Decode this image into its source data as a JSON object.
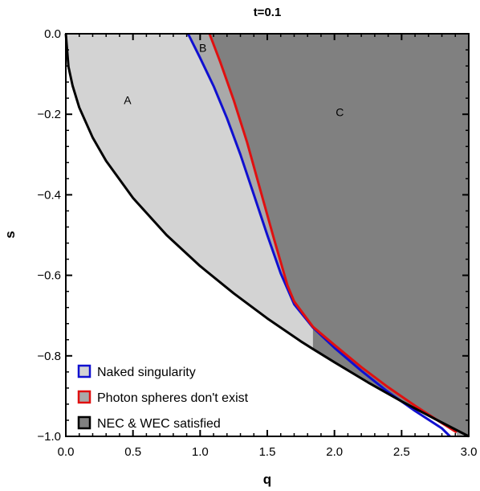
{
  "chart_data": {
    "type": "area",
    "title": "t=0.1",
    "xlabel": "q",
    "ylabel": "s",
    "xlim": [
      0.0,
      3.0
    ],
    "ylim": [
      -1.0,
      0.0
    ],
    "xticks": [
      0.0,
      0.5,
      1.0,
      1.5,
      2.0,
      2.5,
      3.0
    ],
    "xtick_labels": [
      "0.0",
      "0.5",
      "1.0",
      "1.5",
      "2.0",
      "2.5",
      "3.0"
    ],
    "yticks": [
      0.0,
      -0.2,
      -0.4,
      -0.6,
      -0.8,
      -1.0
    ],
    "ytick_labels": [
      "0.0",
      "−0.2",
      "−0.4",
      "−0.6",
      "−0.8",
      "−1.0"
    ],
    "grid": false,
    "legend_position": "bottom-left",
    "series": [
      {
        "name": "Naked singularity",
        "color": "#1010d0",
        "x": [
          0.91,
          1.0,
          1.1,
          1.2,
          1.3,
          1.4,
          1.5,
          1.6,
          1.7,
          1.84,
          2.0,
          2.2,
          2.4,
          2.6,
          2.8,
          2.86
        ],
        "y": [
          0.0,
          -0.06,
          -0.13,
          -0.21,
          -0.3,
          -0.4,
          -0.5,
          -0.595,
          -0.672,
          -0.73,
          -0.78,
          -0.837,
          -0.89,
          -0.937,
          -0.98,
          -1.0
        ]
      },
      {
        "name": "Photon spheres don't exist",
        "color": "#e01010",
        "x": [
          1.07,
          1.15,
          1.25,
          1.35,
          1.45,
          1.55,
          1.65,
          1.7,
          1.84,
          2.0,
          2.2,
          2.4,
          2.6,
          2.8,
          2.91
        ],
        "y": [
          0.0,
          -0.07,
          -0.165,
          -0.27,
          -0.39,
          -0.51,
          -0.625,
          -0.665,
          -0.728,
          -0.773,
          -0.828,
          -0.878,
          -0.924,
          -0.967,
          -0.99
        ]
      },
      {
        "name": "NEC & WEC satisfied",
        "color": "#000000",
        "x": [
          0.0,
          0.02,
          0.05,
          0.1,
          0.2,
          0.3,
          0.5,
          0.75,
          1.0,
          1.25,
          1.5,
          1.75,
          1.84,
          2.0,
          2.25,
          2.5,
          2.75,
          3.0
        ],
        "y": [
          0.0,
          -0.082,
          -0.129,
          -0.183,
          -0.258,
          -0.316,
          -0.408,
          -0.5,
          -0.577,
          -0.645,
          -0.707,
          -0.764,
          -0.783,
          -0.816,
          -0.866,
          -0.913,
          -0.957,
          -1.0
        ]
      }
    ],
    "regions": [
      {
        "label": "A",
        "x": 0.46,
        "y": -0.175,
        "fill": "#d3d3d3"
      },
      {
        "label": "B",
        "x": 1.02,
        "y": -0.045,
        "fill": "#a9a9a9"
      },
      {
        "label": "C",
        "x": 2.04,
        "y": -0.205,
        "fill": "#808080"
      }
    ]
  }
}
